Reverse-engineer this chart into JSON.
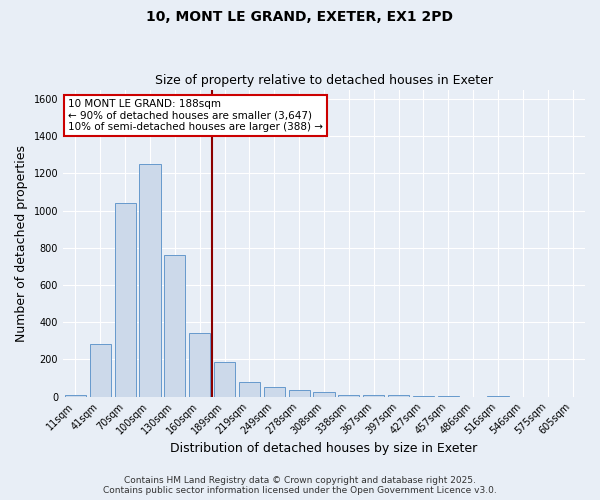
{
  "title_line1": "10, MONT LE GRAND, EXETER, EX1 2PD",
  "title_line2": "Size of property relative to detached houses in Exeter",
  "xlabel": "Distribution of detached houses by size in Exeter",
  "ylabel": "Number of detached properties",
  "bar_labels": [
    "11sqm",
    "41sqm",
    "70sqm",
    "100sqm",
    "130sqm",
    "160sqm",
    "189sqm",
    "219sqm",
    "249sqm",
    "278sqm",
    "308sqm",
    "338sqm",
    "367sqm",
    "397sqm",
    "427sqm",
    "457sqm",
    "486sqm",
    "516sqm",
    "546sqm",
    "575sqm",
    "605sqm"
  ],
  "bar_values": [
    10,
    280,
    1040,
    1250,
    760,
    340,
    185,
    80,
    50,
    38,
    25,
    10,
    8,
    8,
    5,
    3,
    0,
    5,
    0,
    0,
    0
  ],
  "bar_color": "#ccd9ea",
  "bar_edge_color": "#6699cc",
  "vline_index": 6,
  "vline_color": "#8b0000",
  "annotation_line1": "10 MONT LE GRAND: 188sqm",
  "annotation_line2": "← 90% of detached houses are smaller (3,647)",
  "annotation_line3": "10% of semi-detached houses are larger (388) →",
  "annotation_box_facecolor": "#ffffff",
  "annotation_box_edgecolor": "#cc0000",
  "ylim": [
    0,
    1650
  ],
  "yticks": [
    0,
    200,
    400,
    600,
    800,
    1000,
    1200,
    1400,
    1600
  ],
  "bg_color": "#e8eef6",
  "plot_bg_color": "#e8eef6",
  "grid_color": "#ffffff",
  "footer_line1": "Contains HM Land Registry data © Crown copyright and database right 2025.",
  "footer_line2": "Contains public sector information licensed under the Open Government Licence v3.0.",
  "title_fontsize": 10,
  "subtitle_fontsize": 9,
  "axis_label_fontsize": 9,
  "tick_fontsize": 7,
  "annotation_fontsize": 7.5,
  "footer_fontsize": 6.5
}
